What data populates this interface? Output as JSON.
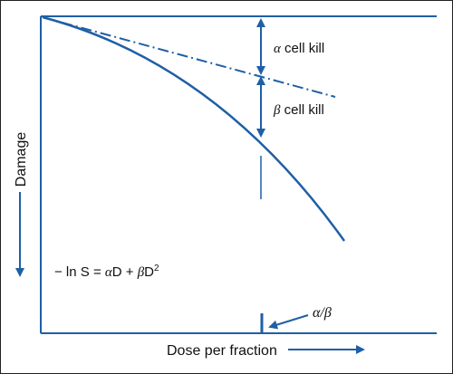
{
  "diagram": {
    "y_axis_label": "Damage",
    "x_axis_label": "Dose per fraction",
    "alpha_label": {
      "symbol": "α",
      "text": " cell kill"
    },
    "beta_label": {
      "symbol": "β",
      "text": " cell kill"
    },
    "ratio_label": {
      "alpha": "α",
      "slash": "/",
      "beta": "β"
    },
    "equation": {
      "prefix": "− ln S = ",
      "alpha": "α",
      "mid": "D + ",
      "beta": "β",
      "tail": "D",
      "exponent": "2"
    },
    "colors": {
      "curve": "#1f5fa6",
      "axes": "#1f5fa6",
      "text": "#111111",
      "frame": "#222222"
    }
  }
}
